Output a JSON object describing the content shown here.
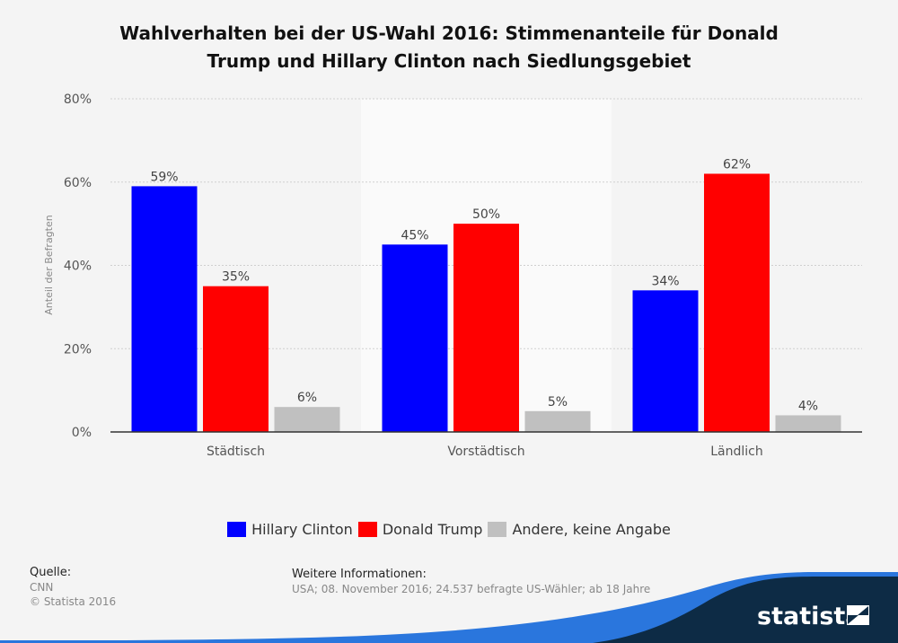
{
  "chart_data": {
    "type": "bar",
    "title": "Wahlverhalten bei der US-Wahl 2016: Stimmenanteile für Donald Trump und Hillary Clinton nach Siedlungsgebiet",
    "title_lines": [
      "Wahlverhalten bei der US-Wahl 2016: Stimmenanteile für Donald",
      "Trump und Hillary Clinton nach Siedlungsgebiet"
    ],
    "categories": [
      "Städtisch",
      "Vorstädtisch",
      "Ländlich"
    ],
    "series": [
      {
        "name": "Hillary Clinton",
        "color": "#0000ff",
        "values": [
          59,
          45,
          34
        ]
      },
      {
        "name": "Donald Trump",
        "color": "#ff0000",
        "values": [
          35,
          50,
          62
        ]
      },
      {
        "name": "Andere, keine Angabe",
        "color": "#c0c0c0",
        "values": [
          6,
          5,
          4
        ]
      }
    ],
    "xlabel": "",
    "ylabel": "Anteil der Befragten",
    "ylim": [
      0,
      80
    ],
    "yticks": [
      0,
      20,
      40,
      60,
      80
    ],
    "ytick_labels": [
      "0%",
      "20%",
      "40%",
      "60%",
      "80%"
    ],
    "value_suffix": "%",
    "grid": true,
    "legend": "bottom-center"
  },
  "footer": {
    "source_heading": "Quelle:",
    "source": "CNN",
    "copyright": "© Statista 2016",
    "info_heading": "Weitere Informationen:",
    "info_text": "USA; 08. November 2016; 24.537 befragte US-Wähler; ab 18 Jahre"
  },
  "brand": {
    "name": "statista",
    "accent": "#2a76dd",
    "dark": "#0d2b45"
  }
}
